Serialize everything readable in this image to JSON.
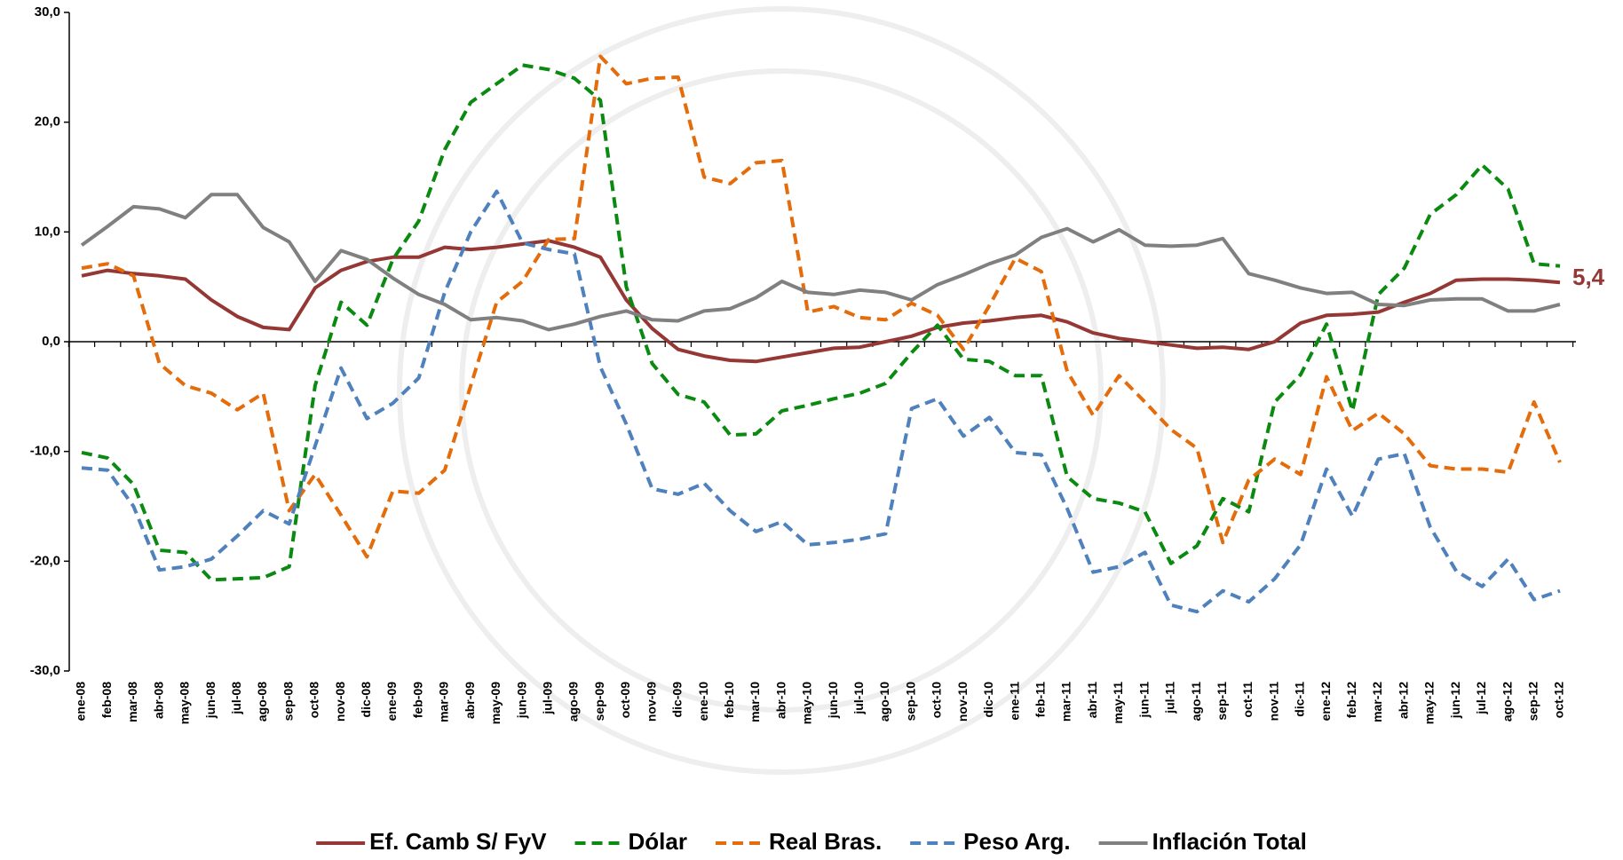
{
  "chart_data": {
    "type": "line",
    "categories": [
      "ene-08",
      "feb-08",
      "mar-08",
      "abr-08",
      "may-08",
      "jun-08",
      "jul-08",
      "ago-08",
      "sep-08",
      "oct-08",
      "nov-08",
      "dic-08",
      "ene-09",
      "feb-09",
      "mar-09",
      "abr-09",
      "may-09",
      "jun-09",
      "jul-09",
      "ago-09",
      "sep-09",
      "oct-09",
      "nov-09",
      "dic-09",
      "ene-10",
      "feb-10",
      "mar-10",
      "abr-10",
      "may-10",
      "jun-10",
      "jul-10",
      "ago-10",
      "sep-10",
      "oct-10",
      "nov-10",
      "dic-10",
      "ene-11",
      "feb-11",
      "mar-11",
      "abr-11",
      "may-11",
      "jun-11",
      "jul-11",
      "ago-11",
      "sep-11",
      "oct-11",
      "nov-11",
      "dic-11",
      "ene-12",
      "feb-12",
      "mar-12",
      "abr-12",
      "may-12",
      "jun-12",
      "jul-12",
      "ago-12",
      "sep-12",
      "oct-12"
    ],
    "series": [
      {
        "name": "Ef. Camb S/ FyV",
        "color": "#953735",
        "style": "solid",
        "values": [
          6.0,
          6.5,
          6.2,
          6.0,
          5.7,
          3.8,
          2.3,
          1.3,
          1.1,
          4.9,
          6.5,
          7.3,
          7.7,
          7.7,
          8.6,
          8.4,
          8.6,
          8.9,
          9.2,
          8.6,
          7.7,
          3.8,
          1.2,
          -0.7,
          -1.3,
          -1.7,
          -1.8,
          -1.4,
          -1.0,
          -0.6,
          -0.5,
          0.0,
          0.5,
          1.3,
          1.7,
          1.9,
          2.2,
          2.4,
          1.8,
          0.8,
          0.3,
          0.0,
          -0.3,
          -0.6,
          -0.5,
          -0.7,
          0.0,
          1.7,
          2.4,
          2.5,
          2.7,
          3.6,
          4.4,
          5.6,
          5.7,
          5.7,
          5.6,
          5.4
        ],
        "value_labels": [
          null,
          null,
          null,
          null,
          null,
          null,
          null,
          null,
          null,
          null,
          null,
          null,
          null,
          null,
          null,
          null,
          null,
          null,
          null,
          null,
          null,
          null,
          null,
          null,
          null,
          null,
          null,
          null,
          null,
          null,
          null,
          null,
          null,
          null,
          null,
          null,
          null,
          null,
          null,
          null,
          null,
          null,
          null,
          null,
          null,
          null,
          null,
          null,
          null,
          null,
          null,
          null,
          null,
          null,
          null,
          null,
          null,
          "5,4"
        ]
      },
      {
        "name": "Dólar",
        "color": "#0b8a12",
        "style": "dashed",
        "values": [
          -10.1,
          -10.6,
          -13.0,
          -19.0,
          -19.2,
          -21.7,
          -21.6,
          -21.5,
          -20.5,
          -4.0,
          3.6,
          1.5,
          7.5,
          11.0,
          17.5,
          21.8,
          23.5,
          25.2,
          24.8,
          24.0,
          22.0,
          5.0,
          -2.0,
          -4.8,
          -5.5,
          -8.5,
          -8.4,
          -6.3,
          -5.8,
          -5.2,
          -4.7,
          -3.8,
          -1.0,
          1.5,
          -1.6,
          -1.8,
          -3.1,
          -3.1,
          -12.3,
          -14.3,
          -14.7,
          -15.5,
          -20.2,
          -18.6,
          -14.3,
          -15.5,
          -5.5,
          -3.0,
          1.6,
          -6.3,
          4.3,
          6.7,
          11.6,
          13.4,
          16.1,
          13.9,
          7.1,
          6.9
        ]
      },
      {
        "name": "Real Bras.",
        "color": "#e46c0a",
        "style": "dashed",
        "values": [
          6.7,
          7.1,
          6.0,
          -2.0,
          -4.0,
          -4.7,
          -6.2,
          -4.7,
          -15.4,
          -12.1,
          -15.8,
          -19.6,
          -13.6,
          -13.8,
          -11.7,
          -4.0,
          3.6,
          5.5,
          9.3,
          9.4,
          26.0,
          23.5,
          24.0,
          24.1,
          15.0,
          14.4,
          16.3,
          16.5,
          2.7,
          3.2,
          2.2,
          2.0,
          3.5,
          2.4,
          -0.7,
          3.3,
          7.6,
          6.4,
          -2.7,
          -6.7,
          -3.1,
          -5.5,
          -8.0,
          -9.7,
          -18.3,
          -12.6,
          -10.7,
          -12.1,
          -3.2,
          -8.1,
          -6.5,
          -8.4,
          -11.3,
          -11.6,
          -11.6,
          -11.9,
          -5.5,
          -11.0
        ]
      },
      {
        "name": "Peso Arg.",
        "color": "#4f81bd",
        "style": "dashed",
        "values": [
          -11.5,
          -11.7,
          -15.0,
          -20.8,
          -20.5,
          -19.8,
          -17.7,
          -15.4,
          -16.6,
          -9.5,
          -2.4,
          -7.0,
          -5.6,
          -3.3,
          4.5,
          10.0,
          13.7,
          9.0,
          8.4,
          8.0,
          -2.3,
          -7.5,
          -13.4,
          -13.9,
          -12.9,
          -15.4,
          -17.3,
          -16.4,
          -18.5,
          -18.3,
          -18.0,
          -17.5,
          -6.1,
          -5.2,
          -8.6,
          -6.9,
          -10.1,
          -10.3,
          -15.2,
          -21.0,
          -20.5,
          -19.2,
          -24.0,
          -24.6,
          -22.7,
          -23.7,
          -21.6,
          -18.5,
          -11.6,
          -15.9,
          -10.7,
          -10.2,
          -16.9,
          -20.9,
          -22.3,
          -19.8,
          -23.5,
          -22.7
        ]
      },
      {
        "name": "Inflación Total",
        "color": "#808080",
        "style": "solid",
        "values": [
          8.8,
          10.5,
          12.3,
          12.1,
          11.3,
          13.4,
          13.4,
          10.4,
          9.1,
          5.5,
          8.3,
          7.5,
          5.8,
          4.3,
          3.4,
          2.0,
          2.2,
          1.9,
          1.1,
          1.6,
          2.3,
          2.8,
          2.0,
          1.9,
          2.8,
          3.0,
          4.0,
          5.5,
          4.5,
          4.3,
          4.7,
          4.5,
          3.8,
          5.2,
          6.1,
          7.1,
          7.9,
          9.5,
          10.3,
          9.1,
          10.2,
          8.8,
          8.7,
          8.8,
          9.4,
          6.2,
          5.6,
          4.9,
          4.4,
          4.5,
          3.4,
          3.3,
          3.8,
          3.9,
          3.9,
          2.8,
          2.8,
          3.4
        ]
      }
    ],
    "ylim": [
      -30,
      30
    ],
    "yticks": [
      {
        "value": -30,
        "label": "-30,0"
      },
      {
        "value": -20,
        "label": "-20,0"
      },
      {
        "value": -10,
        "label": "-10,0"
      },
      {
        "value": 0,
        "label": "0,0"
      },
      {
        "value": 10,
        "label": "10,0"
      },
      {
        "value": 20,
        "label": "20,0"
      },
      {
        "value": 30,
        "label": "30,0"
      }
    ],
    "grid": false,
    "legend": "bottom"
  }
}
